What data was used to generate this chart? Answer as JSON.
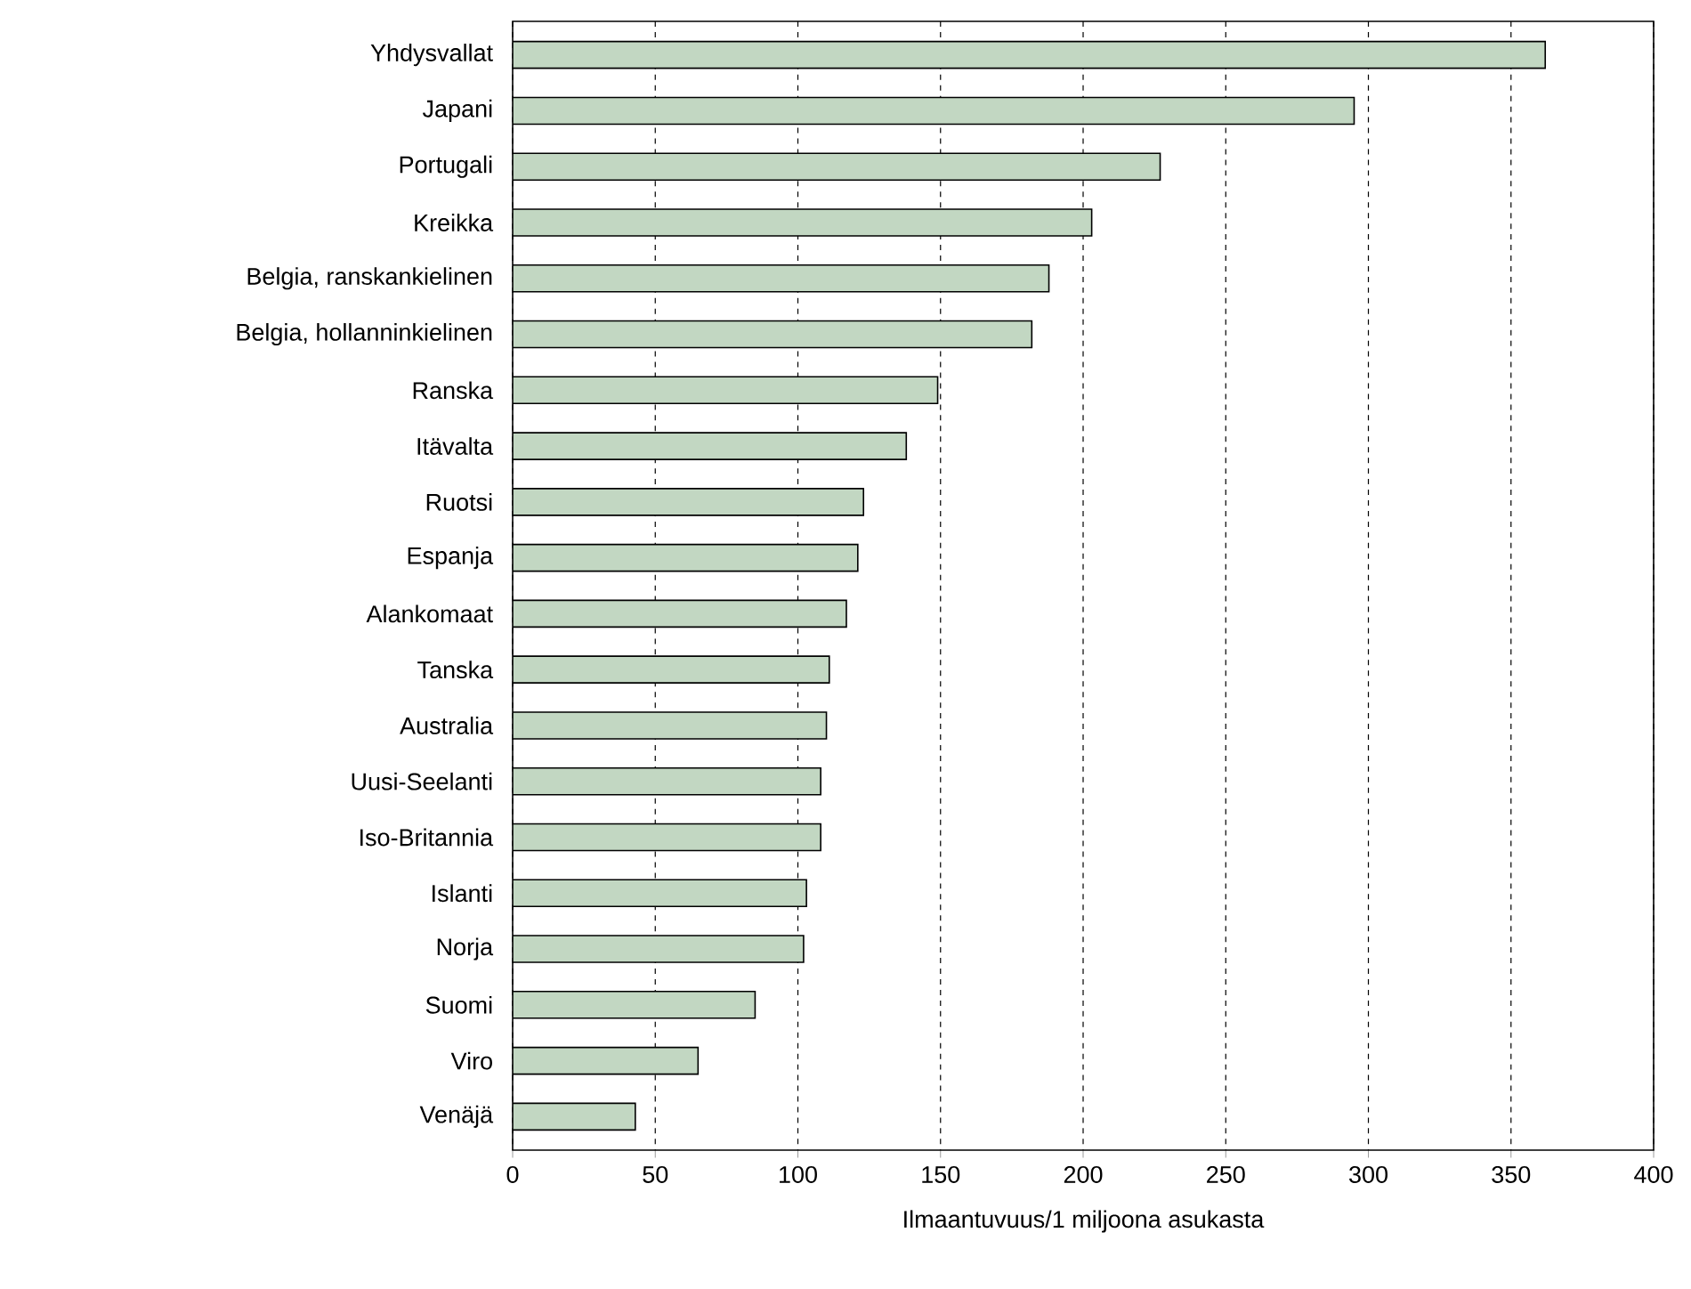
{
  "chart_data": {
    "type": "bar",
    "orientation": "horizontal",
    "xlabel": "Ilmaantuvuus/1 miljoona asukasta",
    "categories": [
      "Yhdysvallat",
      "Japani",
      "Portugali",
      "Kreikka",
      "Belgia, ranskankielinen",
      "Belgia, hollanninkielinen",
      "Ranska",
      "Itävalta",
      "Ruotsi",
      "Espanja",
      "Alankomaat",
      "Tanska",
      "Australia",
      "Uusi-Seelanti",
      "Iso-Britannia",
      "Islanti",
      "Norja",
      "Suomi",
      "Viro",
      "Venäjä"
    ],
    "values": [
      362,
      295,
      227,
      203,
      188,
      182,
      149,
      138,
      123,
      121,
      117,
      111,
      110,
      108,
      108,
      103,
      102,
      85,
      65,
      43
    ],
    "color": "#c2d7c2",
    "xlim": [
      0,
      400
    ],
    "xticks": [
      0,
      50,
      100,
      150,
      200,
      250,
      300,
      350,
      400
    ],
    "grid": "x"
  }
}
